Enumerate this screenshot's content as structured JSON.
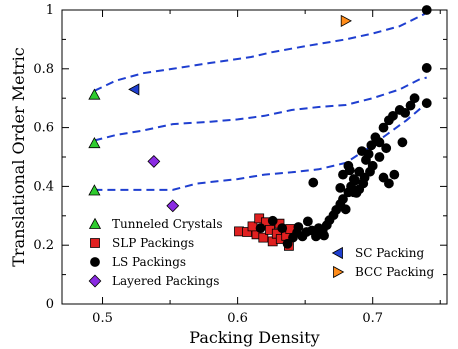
{
  "chart_data": {
    "type": "scatter",
    "xlabel": "Packing Density",
    "ylabel": "Translational Order Metric",
    "xlim": [
      0.47,
      0.755
    ],
    "ylim": [
      0,
      1
    ],
    "x_ticks": [
      0.5,
      0.6,
      0.7
    ],
    "y_ticks": [
      0,
      0.2,
      0.4,
      0.6,
      0.8,
      1
    ],
    "x_tick_labels": [
      "0.5",
      "0.6",
      "0.7"
    ],
    "y_tick_labels": [
      "0",
      "0.2",
      "0.4",
      "0.6",
      "0.8",
      "1"
    ],
    "grid": false,
    "series": [
      {
        "name": "Tunneled Crystals",
        "marker": "triangle-up",
        "color": "#2ecc2e",
        "points": [
          [
            0.494,
            0.712
          ],
          [
            0.494,
            0.547
          ],
          [
            0.494,
            0.386
          ]
        ]
      },
      {
        "name": "SLP Packings",
        "marker": "square",
        "color": "#e02020",
        "points": [
          [
            0.601,
            0.247
          ],
          [
            0.607,
            0.245
          ],
          [
            0.614,
            0.237
          ],
          [
            0.611,
            0.264
          ],
          [
            0.616,
            0.291
          ],
          [
            0.619,
            0.226
          ],
          [
            0.621,
            0.278
          ],
          [
            0.624,
            0.252
          ],
          [
            0.626,
            0.213
          ],
          [
            0.629,
            0.239
          ],
          [
            0.631,
            0.273
          ],
          [
            0.632,
            0.221
          ],
          [
            0.636,
            0.232
          ],
          [
            0.638,
            0.198
          ],
          [
            0.639,
            0.255
          ]
        ]
      },
      {
        "name": "LS Packings",
        "marker": "circle",
        "color": "#000000",
        "points": [
          [
            0.617,
            0.258
          ],
          [
            0.626,
            0.283
          ],
          [
            0.633,
            0.258
          ],
          [
            0.637,
            0.205
          ],
          [
            0.641,
            0.226
          ],
          [
            0.644,
            0.243
          ],
          [
            0.645,
            0.262
          ],
          [
            0.648,
            0.23
          ],
          [
            0.651,
            0.245
          ],
          [
            0.652,
            0.281
          ],
          [
            0.655,
            0.25
          ],
          [
            0.658,
            0.23
          ],
          [
            0.66,
            0.258
          ],
          [
            0.663,
            0.25
          ],
          [
            0.664,
            0.233
          ],
          [
            0.666,
            0.268
          ],
          [
            0.668,
            0.285
          ],
          [
            0.671,
            0.302
          ],
          [
            0.673,
            0.32
          ],
          [
            0.676,
            0.34
          ],
          [
            0.678,
            0.357
          ],
          [
            0.68,
            0.322
          ],
          [
            0.682,
            0.38
          ],
          [
            0.684,
            0.4
          ],
          [
            0.686,
            0.425
          ],
          [
            0.688,
            0.378
          ],
          [
            0.69,
            0.45
          ],
          [
            0.693,
            0.41
          ],
          [
            0.695,
            0.49
          ],
          [
            0.697,
            0.51
          ],
          [
            0.699,
            0.54
          ],
          [
            0.702,
            0.567
          ],
          [
            0.705,
            0.55
          ],
          [
            0.708,
            0.6
          ],
          [
            0.712,
            0.625
          ],
          [
            0.715,
            0.64
          ],
          [
            0.72,
            0.66
          ],
          [
            0.724,
            0.65
          ],
          [
            0.728,
            0.675
          ],
          [
            0.731,
            0.7
          ],
          [
            0.678,
            0.44
          ],
          [
            0.682,
            0.47
          ],
          [
            0.686,
            0.38
          ],
          [
            0.69,
            0.39
          ],
          [
            0.694,
            0.43
          ],
          [
            0.698,
            0.45
          ],
          [
            0.692,
            0.52
          ],
          [
            0.7,
            0.47
          ],
          [
            0.708,
            0.43
          ],
          [
            0.712,
            0.41
          ],
          [
            0.716,
            0.44
          ],
          [
            0.687,
            0.42
          ],
          [
            0.683,
            0.455
          ],
          [
            0.676,
            0.395
          ],
          [
            0.656,
            0.413
          ],
          [
            0.722,
            0.55
          ],
          [
            0.71,
            0.53
          ],
          [
            0.705,
            0.5
          ],
          [
            0.74,
            0.683
          ],
          [
            0.74,
            0.803
          ],
          [
            0.74,
            1.0
          ]
        ]
      },
      {
        "name": "Layered Packings",
        "marker": "diamond",
        "color": "#8a2be2",
        "points": [
          [
            0.538,
            0.485
          ],
          [
            0.552,
            0.334
          ]
        ]
      },
      {
        "name": "SC Packing",
        "marker": "triangle-left",
        "color": "#1f3fd0",
        "points": [
          [
            0.5236,
            0.73
          ]
        ]
      },
      {
        "name": "BCC Packing",
        "marker": "triangle-right",
        "color": "#ff8c1a",
        "points": [
          [
            0.68,
            0.963
          ]
        ]
      }
    ],
    "curves": [
      {
        "style": "dashed",
        "color": "#1f3fd0",
        "points": [
          [
            0.494,
            0.725
          ],
          [
            0.51,
            0.76
          ],
          [
            0.53,
            0.785
          ],
          [
            0.552,
            0.8
          ],
          [
            0.58,
            0.82
          ],
          [
            0.61,
            0.84
          ],
          [
            0.625,
            0.856
          ],
          [
            0.65,
            0.877
          ],
          [
            0.68,
            0.9
          ],
          [
            0.7,
            0.92
          ],
          [
            0.72,
            0.945
          ],
          [
            0.74,
            0.99
          ]
        ]
      },
      {
        "style": "dashed",
        "color": "#1f3fd0",
        "points": [
          [
            0.494,
            0.556
          ],
          [
            0.51,
            0.575
          ],
          [
            0.53,
            0.59
          ],
          [
            0.552,
            0.612
          ],
          [
            0.58,
            0.62
          ],
          [
            0.6,
            0.628
          ],
          [
            0.62,
            0.64
          ],
          [
            0.64,
            0.66
          ],
          [
            0.66,
            0.67
          ],
          [
            0.68,
            0.677
          ],
          [
            0.7,
            0.7
          ],
          [
            0.72,
            0.73
          ],
          [
            0.735,
            0.765
          ],
          [
            0.74,
            0.77
          ]
        ]
      },
      {
        "style": "dashed",
        "color": "#1f3fd0",
        "points": [
          [
            0.494,
            0.388
          ],
          [
            0.51,
            0.388
          ],
          [
            0.552,
            0.388
          ],
          [
            0.57,
            0.41
          ],
          [
            0.6,
            0.425
          ],
          [
            0.62,
            0.44
          ],
          [
            0.64,
            0.448
          ],
          [
            0.66,
            0.458
          ],
          [
            0.68,
            0.48
          ],
          [
            0.695,
            0.525
          ],
          [
            0.71,
            0.575
          ],
          [
            0.725,
            0.625
          ],
          [
            0.74,
            0.683
          ]
        ]
      }
    ],
    "legend": {
      "left_block": [
        "Tunneled Crystals",
        "SLP Packings",
        "LS Packings",
        "Layered Packings"
      ],
      "right_block": [
        "SC Packing",
        "BCC Packing"
      ]
    }
  }
}
